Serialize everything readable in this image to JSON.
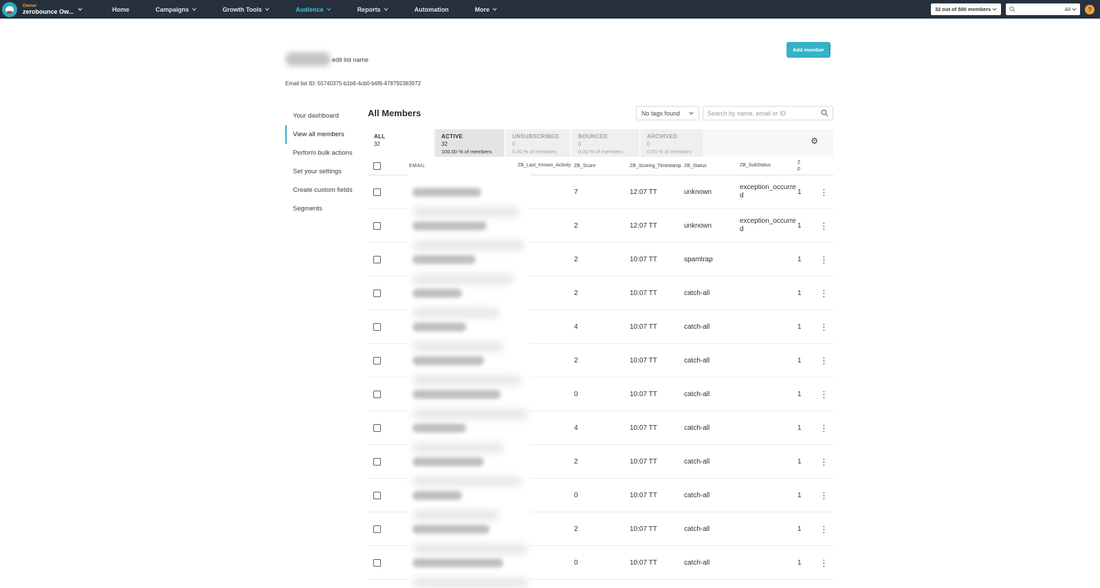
{
  "navbar": {
    "account_role": "Owner",
    "account_name": "zerobounce Ow...",
    "items": [
      {
        "label": "Home"
      },
      {
        "label": "Campaigns"
      },
      {
        "label": "Growth Tools"
      },
      {
        "label": "Audience"
      },
      {
        "label": "Reports"
      },
      {
        "label": "Automation"
      },
      {
        "label": "More"
      }
    ],
    "active_item": "Audience",
    "members_dropdown": "32 out of 500 members",
    "search_filter": "All",
    "help_label": "?",
    "colors": {
      "bar": "#27303d",
      "accent": "#3fc6da",
      "owner": "#f1a33c",
      "help": "#f0a33c"
    }
  },
  "header": {
    "edit_list_name_label": "edit list name",
    "add_member_label": "Add member",
    "email_list_id": "Email list ID: 55740375-b1b9-4cb0-b6f6-478792383972"
  },
  "sidebar": {
    "items": [
      {
        "label": "Your dashboard"
      },
      {
        "label": "View all members"
      },
      {
        "label": "Perform bulk actions"
      },
      {
        "label": "Set your settings"
      },
      {
        "label": "Create custom fields"
      },
      {
        "label": "Segments"
      }
    ],
    "active_item": "View all members"
  },
  "main": {
    "title": "All Members",
    "tags_dropdown": "No tags found",
    "search_placeholder": "Search by name, email or ID",
    "tabs": [
      {
        "label": "ALL",
        "count": "32",
        "pct": ""
      },
      {
        "label": "ACTIVE",
        "count": "32",
        "pct": "100.00 % of members"
      },
      {
        "label": "UNSUBSCRIBED",
        "count": "0",
        "pct": "0.00 % of members"
      },
      {
        "label": "BOUNCED",
        "count": "0",
        "pct": "0.00 % of members"
      },
      {
        "label": "ARCHIVED",
        "count": "0",
        "pct": "0.00 % of members"
      }
    ],
    "selected_tab": "ALL",
    "table": {
      "columns": {
        "email": "EMAIL",
        "activity": "ZB_Last_Known_Activity",
        "score": "ZB_Score",
        "timestamp": "ZB_Scoring_Timestamp",
        "status": "ZB_Status",
        "substatus": "ZB_SubStatus",
        "zp": "Zp"
      },
      "rows": [
        {
          "email_blurred": true,
          "email_blur_width": 100,
          "activity": "",
          "score": "7",
          "timestamp": "12:07 TT",
          "status": "unknown",
          "substatus": "exception_occurred",
          "zp": "1"
        },
        {
          "email_blurred": true,
          "email_blur_width": 108,
          "activity": "",
          "score": "2",
          "timestamp": "12:07 TT",
          "status": "unknown",
          "substatus": "exception_occurred",
          "zp": "1"
        },
        {
          "email_blurred": true,
          "email_blur_width": 92,
          "activity": "",
          "score": "2",
          "timestamp": "10:07 TT",
          "status": "spamtrap",
          "substatus": "",
          "zp": "1"
        },
        {
          "email_blurred": true,
          "email_blur_width": 72,
          "activity": "",
          "score": "2",
          "timestamp": "10:07 TT",
          "status": "catch-all",
          "substatus": "",
          "zp": "1"
        },
        {
          "email_blurred": true,
          "email_blur_width": 78,
          "activity": "",
          "score": "4",
          "timestamp": "10:07 TT",
          "status": "catch-all",
          "substatus": "",
          "zp": "1"
        },
        {
          "email_blurred": true,
          "email_blur_width": 104,
          "activity": "",
          "score": "2",
          "timestamp": "10:07 TT",
          "status": "catch-all",
          "substatus": "",
          "zp": "1"
        },
        {
          "email_blurred": true,
          "email_blur_width": 128,
          "activity": "",
          "score": "0",
          "timestamp": "10:07 TT",
          "status": "catch-all",
          "substatus": "",
          "zp": "1"
        },
        {
          "email_blurred": true,
          "email_blur_width": 78,
          "activity": "",
          "score": "4",
          "timestamp": "10:07 TT",
          "status": "catch-all",
          "substatus": "",
          "zp": "1"
        },
        {
          "email_blurred": true,
          "email_blur_width": 104,
          "activity": "",
          "score": "2",
          "timestamp": "10:07 TT",
          "status": "catch-all",
          "substatus": "",
          "zp": "1"
        },
        {
          "email_blurred": true,
          "email_blur_width": 72,
          "activity": "",
          "score": "0",
          "timestamp": "10:07 TT",
          "status": "catch-all",
          "substatus": "",
          "zp": "1"
        },
        {
          "email_blurred": true,
          "email_blur_width": 112,
          "activity": "",
          "score": "2",
          "timestamp": "10:07 TT",
          "status": "catch-all",
          "substatus": "",
          "zp": "1"
        },
        {
          "email_blurred": true,
          "email_blur_width": 132,
          "activity": "",
          "score": "0",
          "timestamp": "10:07 TT",
          "status": "catch-all",
          "substatus": "",
          "zp": "1"
        }
      ]
    }
  }
}
